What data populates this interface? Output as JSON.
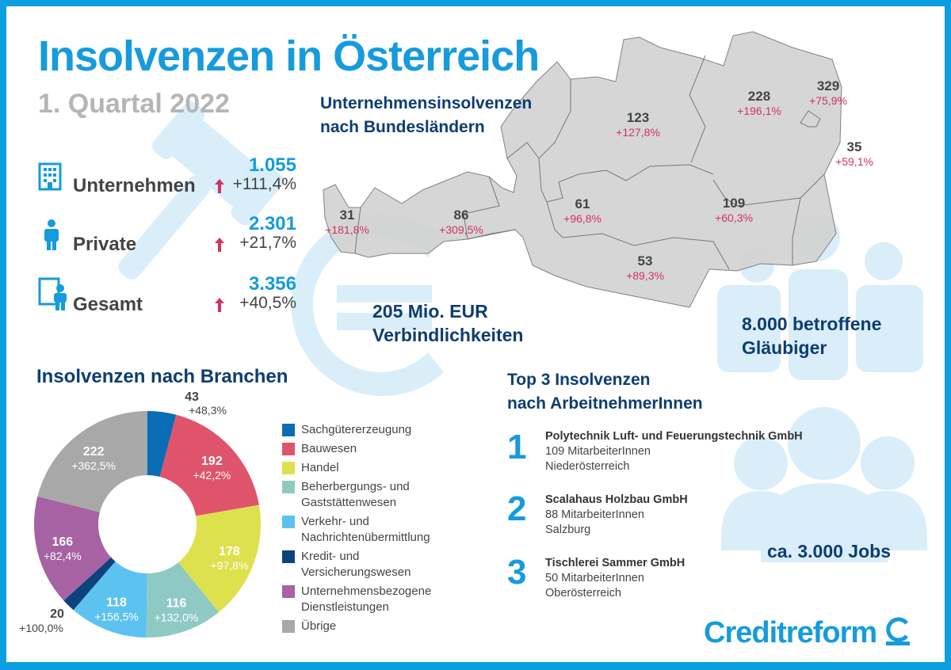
{
  "header": {
    "title": "Insolvenzen in Österreich",
    "subtitle": "1. Quartal 2022"
  },
  "stats": [
    {
      "icon": "office-building-icon",
      "label": "Unternehmen",
      "value": "1.055",
      "change": "+111,4%"
    },
    {
      "icon": "person-icon",
      "label": "Private",
      "value": "2.301",
      "change": "+21,7%"
    },
    {
      "icon": "building-and-person-icon",
      "label": "Gesamt",
      "value": "3.356",
      "change": "+40,5%"
    }
  ],
  "map": {
    "title_line1": "Unternehmensinsolvenzen",
    "title_line2": "nach Bundesländern",
    "regions": [
      {
        "value": "31",
        "change": "+181,8%"
      },
      {
        "value": "86",
        "change": "+309,5%"
      },
      {
        "value": "61",
        "change": "+96,8%"
      },
      {
        "value": "123",
        "change": "+127,8%"
      },
      {
        "value": "228",
        "change": "+196,1%"
      },
      {
        "value": "329",
        "change": "+75,9%"
      },
      {
        "value": "35",
        "change": "+59,1%"
      },
      {
        "value": "109",
        "change": "+60,3%"
      },
      {
        "value": "53",
        "change": "+89,3%"
      }
    ]
  },
  "liabilities": {
    "line1": "205 Mio. EUR",
    "line2": "Verbindlichkeiten"
  },
  "creditors": {
    "line1": "8.000 betroffene",
    "line2": "Gläubiger"
  },
  "jobs": "ca. 3.000 Jobs",
  "top3": {
    "title_line1": "Top 3 Insolvenzen",
    "title_line2": "nach ArbeitnehmerInnen",
    "items": [
      {
        "rank": "1",
        "name": "Polytechnik Luft- und Feuerungstechnik GmbH",
        "employees": "109 MitarbeiterInnen",
        "state": "Niederösterreich"
      },
      {
        "rank": "2",
        "name": "Scalahaus Holzbau GmbH",
        "employees": "88 MitarbeiterInnen",
        "state": "Salzburg"
      },
      {
        "rank": "3",
        "name": "Tischlerei Sammer GmbH",
        "employees": "50 MitarbeiterInnen",
        "state": "Oberösterreich"
      }
    ]
  },
  "brand": "Creditreform",
  "chart_data": {
    "type": "pie",
    "donut": true,
    "title": "Insolvenzen nach Branchen",
    "categories": [
      "Sachgütererzeugung",
      "Bauwesen",
      "Handel",
      "Beherbergungs- und Gaststättenwesen",
      "Verkehr- und Nachrichtenübermittlung",
      "Kredit- und Versicherungswesen",
      "Unternehmensbezogene Dienstleistungen",
      "Übrige"
    ],
    "legend_lines": [
      [
        "Sachgütererzeugung"
      ],
      [
        "Bauwesen"
      ],
      [
        "Handel"
      ],
      [
        "Beherbergungs- und",
        "Gaststättenwesen"
      ],
      [
        "Verkehr- und",
        "Nachrichtenübermittlung"
      ],
      [
        "Kredit- und",
        "Versicherungswesen"
      ],
      [
        "Unternehmensbezogene",
        "Dienstleistungen"
      ],
      [
        "Übrige"
      ]
    ],
    "values": [
      43,
      192,
      178,
      116,
      118,
      20,
      166,
      222
    ],
    "value_labels": [
      "43",
      "192",
      "178",
      "116",
      "118",
      "20",
      "166",
      "222"
    ],
    "change_labels": [
      "+48,3%",
      "+42,2%",
      "+97,8%",
      "+132,0%",
      "+156,5%",
      "+100,0%",
      "+82,4%",
      "+362,5%"
    ],
    "colors": [
      "#0a6cb5",
      "#e0546b",
      "#dde14e",
      "#8ecac3",
      "#5cc3f0",
      "#0b437c",
      "#a662a3",
      "#a8a8a8"
    ],
    "legend_placement": "right"
  }
}
